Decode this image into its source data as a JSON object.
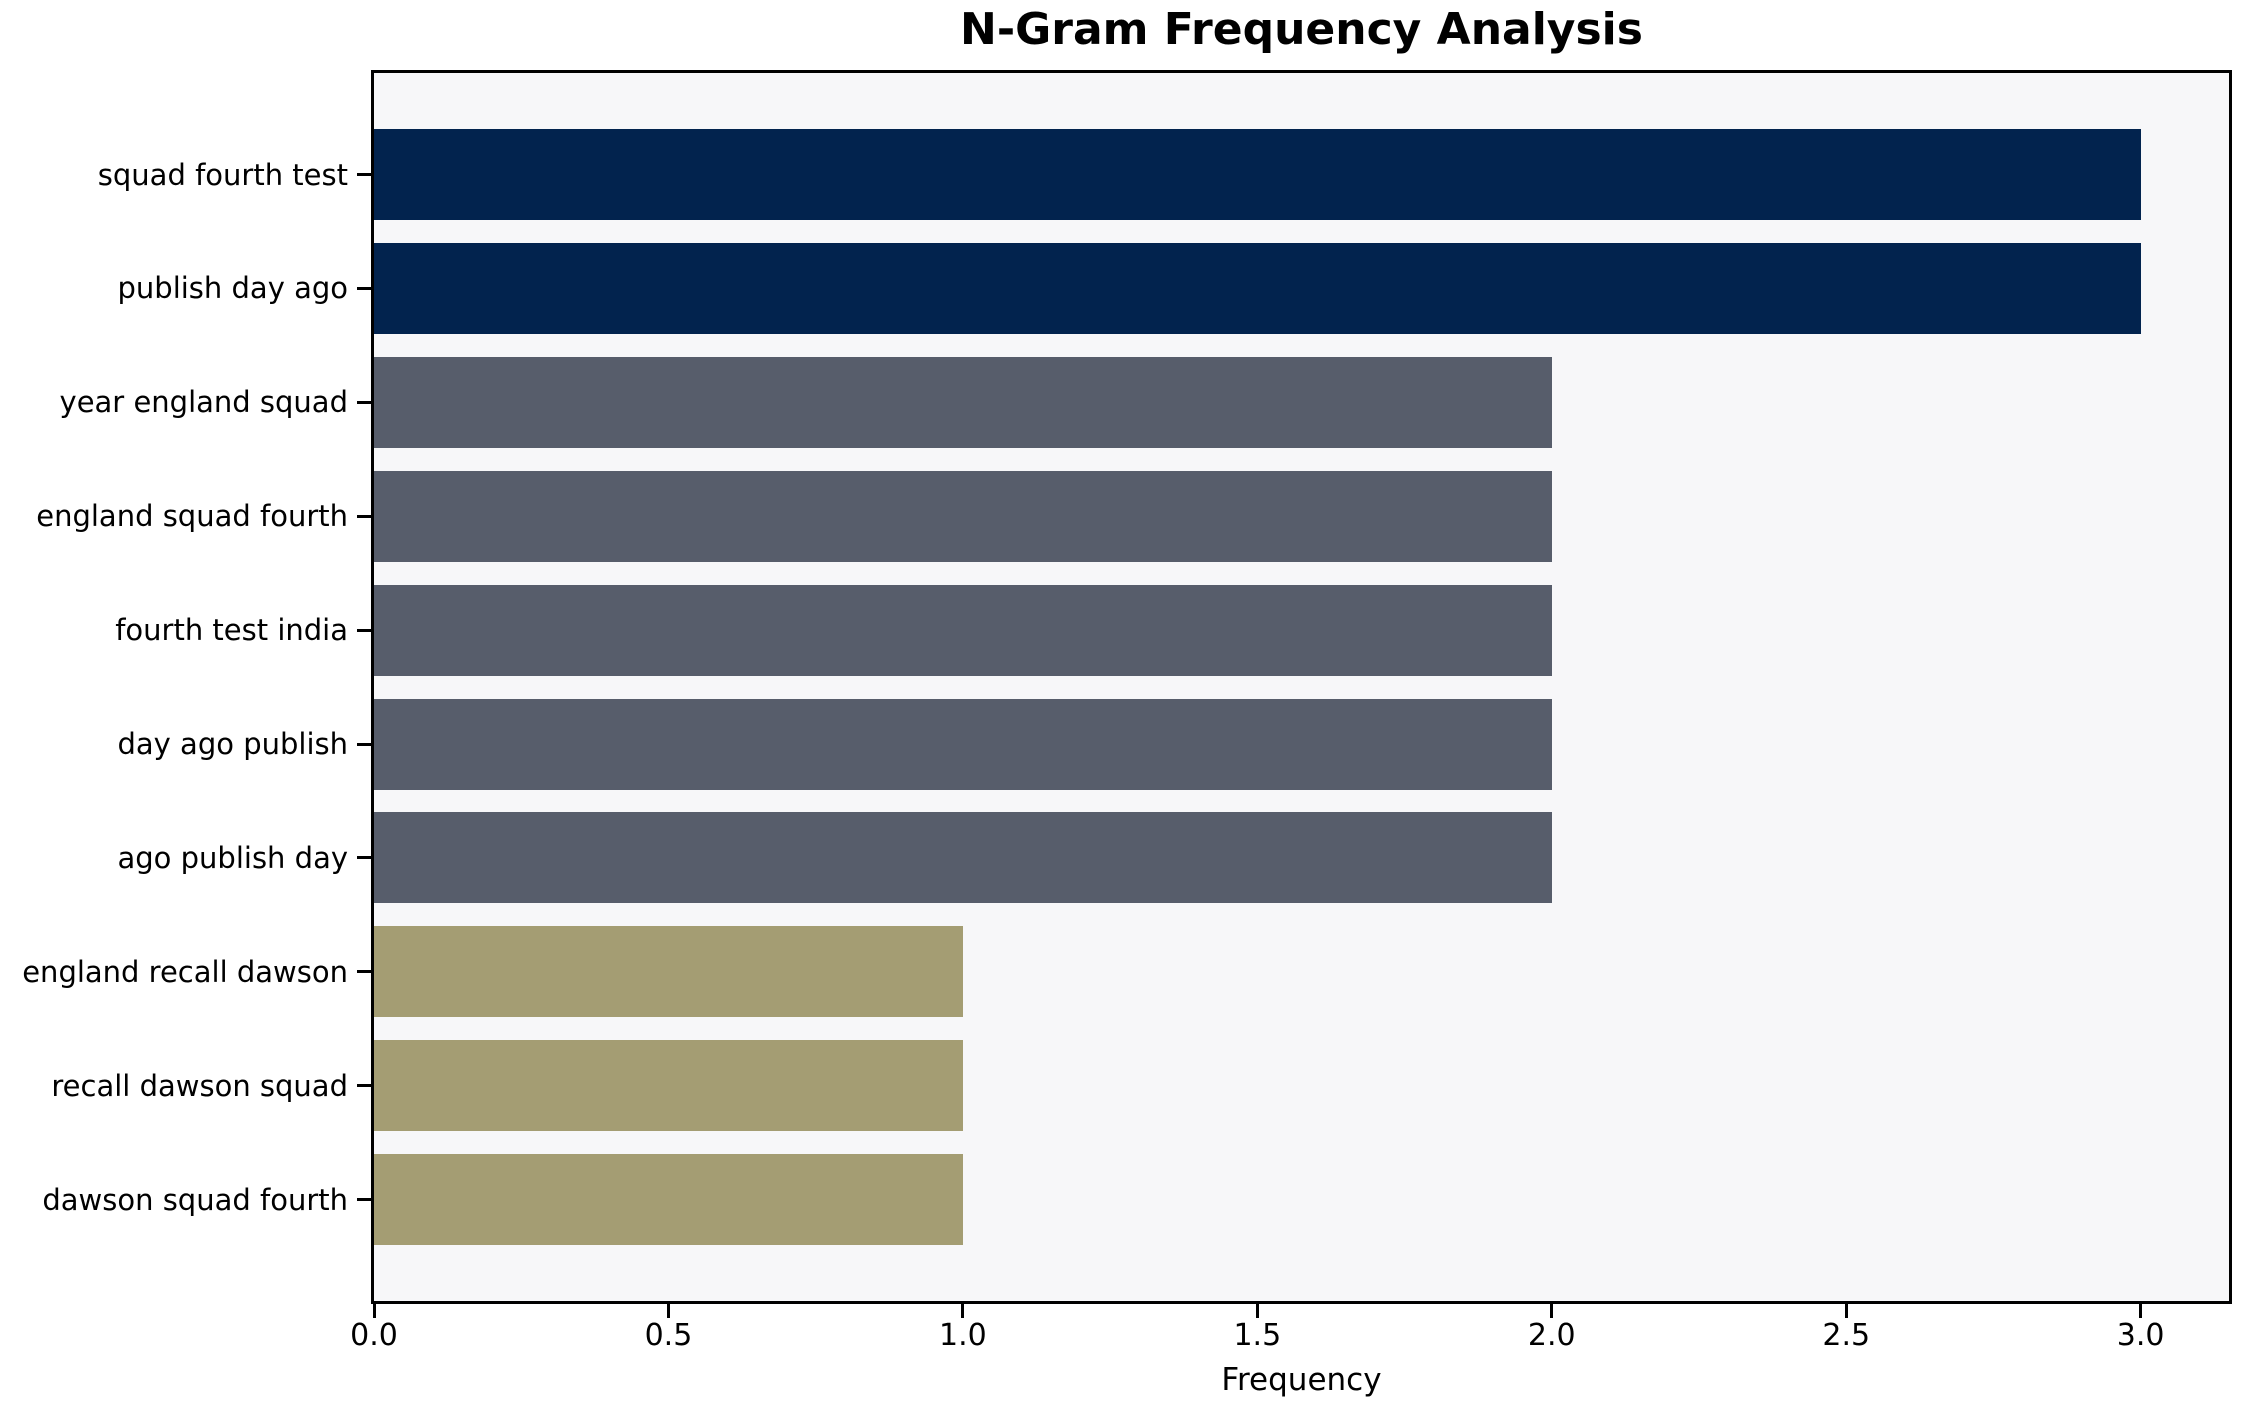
{
  "title": "N-Gram Frequency Analysis",
  "chart_data": {
    "type": "bar",
    "orientation": "horizontal",
    "title": "N-Gram Frequency Analysis",
    "xlabel": "Frequency",
    "ylabel": "",
    "categories": [
      "squad fourth test",
      "publish day ago",
      "year england squad",
      "england squad fourth",
      "fourth test india",
      "day ago publish",
      "ago publish day",
      "england recall dawson",
      "recall dawson squad",
      "dawson squad fourth"
    ],
    "values": [
      3,
      3,
      2,
      2,
      2,
      2,
      2,
      1,
      1,
      1
    ],
    "bar_colors": [
      "#02234e",
      "#02234e",
      "#575d6b",
      "#575d6b",
      "#575d6b",
      "#575d6b",
      "#575d6b",
      "#a49d73",
      "#a49d73",
      "#a49d73"
    ],
    "xlim": [
      0,
      3.15
    ],
    "xticks": [
      0.0,
      0.5,
      1.0,
      1.5,
      2.0,
      2.5,
      3.0
    ],
    "xtick_labels": [
      "0.0",
      "0.5",
      "1.0",
      "1.5",
      "2.0",
      "2.5",
      "3.0"
    ],
    "grid": false,
    "legend": null,
    "plot_background": "#f7f7f9",
    "figure_background": "#ffffff",
    "spine_color": "#000000"
  }
}
